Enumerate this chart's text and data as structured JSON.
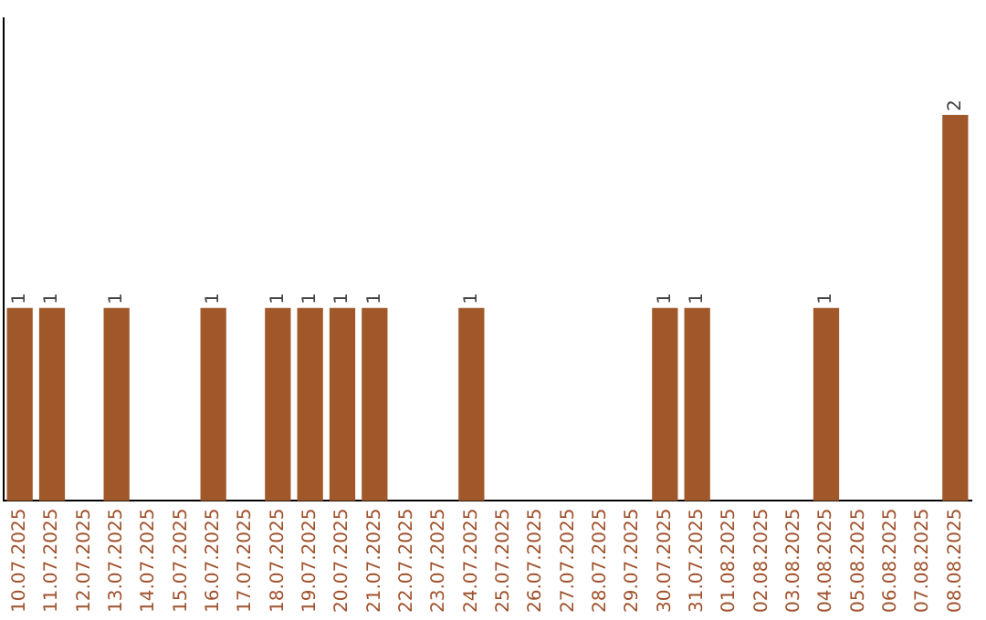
{
  "chart_data": {
    "type": "bar",
    "categories": [
      "10.07.2025",
      "11.07.2025",
      "12.07.2025",
      "13.07.2025",
      "14.07.2025",
      "15.07.2025",
      "16.07.2025",
      "17.07.2025",
      "18.07.2025",
      "19.07.2025",
      "20.07.2025",
      "21.07.2025",
      "22.07.2025",
      "23.07.2025",
      "24.07.2025",
      "25.07.2025",
      "26.07.2025",
      "27.07.2025",
      "28.07.2025",
      "29.07.2025",
      "30.07.2025",
      "31.07.2025",
      "01.08.2025",
      "02.08.2025",
      "03.08.2025",
      "04.08.2025",
      "05.08.2025",
      "06.08.2025",
      "07.08.2025",
      "08.08.2025"
    ],
    "values": [
      1,
      1,
      null,
      1,
      null,
      null,
      1,
      null,
      1,
      1,
      1,
      1,
      null,
      null,
      1,
      null,
      null,
      null,
      null,
      null,
      1,
      1,
      null,
      null,
      null,
      1,
      null,
      null,
      null,
      2
    ],
    "color": "#a0582a",
    "data_labels": true,
    "grid": false,
    "legend": false,
    "tick_labels": "x"
  }
}
